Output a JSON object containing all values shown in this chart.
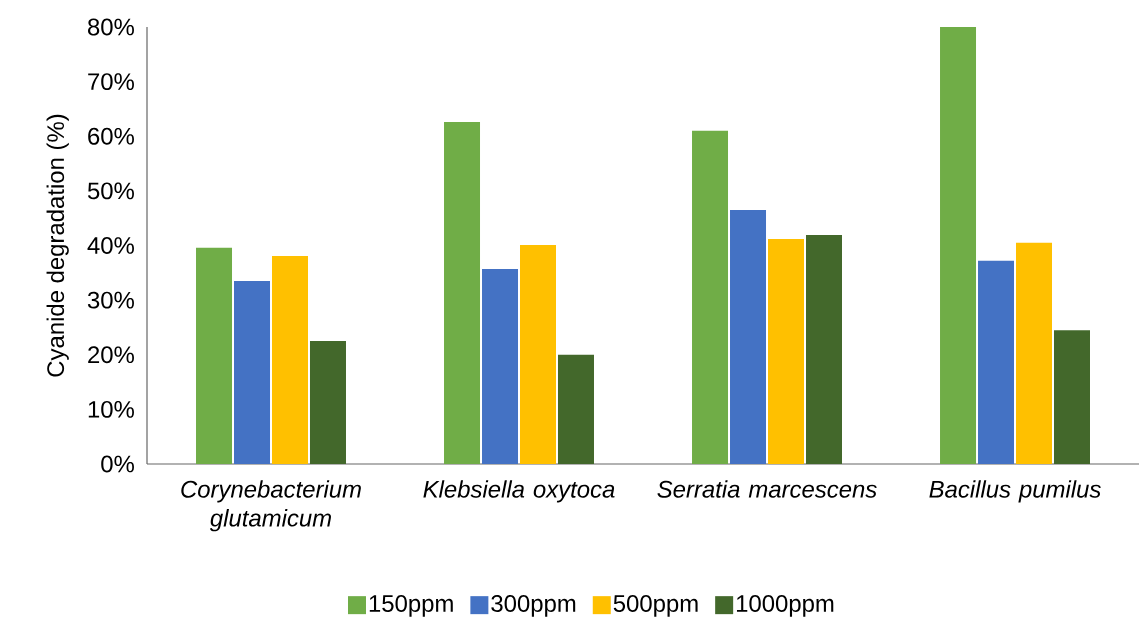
{
  "chart_data": {
    "type": "bar",
    "ylabel": "Cyanide degradation (%)",
    "categories": [
      "Corynebacterium glutamicum",
      "Klebsiella oxytoca",
      "Serratia marcescens",
      "Bacillus pumilus"
    ],
    "series": [
      {
        "name": "150ppm",
        "color": "#70ad47",
        "values": [
          39.6,
          62.6,
          61.0,
          80.0
        ]
      },
      {
        "name": "300ppm",
        "color": "#4472c4",
        "values": [
          33.5,
          35.7,
          46.5,
          37.2
        ]
      },
      {
        "name": "500ppm",
        "color": "#ffc000",
        "values": [
          38.1,
          40.1,
          41.2,
          40.5
        ]
      },
      {
        "name": "1000ppm",
        "color": "#43682b",
        "values": [
          22.5,
          20.0,
          41.9,
          24.5
        ]
      }
    ],
    "ylim": [
      0,
      80
    ],
    "yticks": [
      {
        "value": 0,
        "label": "0%"
      },
      {
        "value": 10,
        "label": "10%"
      },
      {
        "value": 20,
        "label": "20%"
      },
      {
        "value": 30,
        "label": "30%"
      },
      {
        "value": 40,
        "label": "40%"
      },
      {
        "value": 50,
        "label": "50%"
      },
      {
        "value": 60,
        "label": "60%"
      },
      {
        "value": 70,
        "label": "70%"
      },
      {
        "value": 80,
        "label": "80%"
      }
    ],
    "grid": false,
    "legend": "bottom"
  }
}
